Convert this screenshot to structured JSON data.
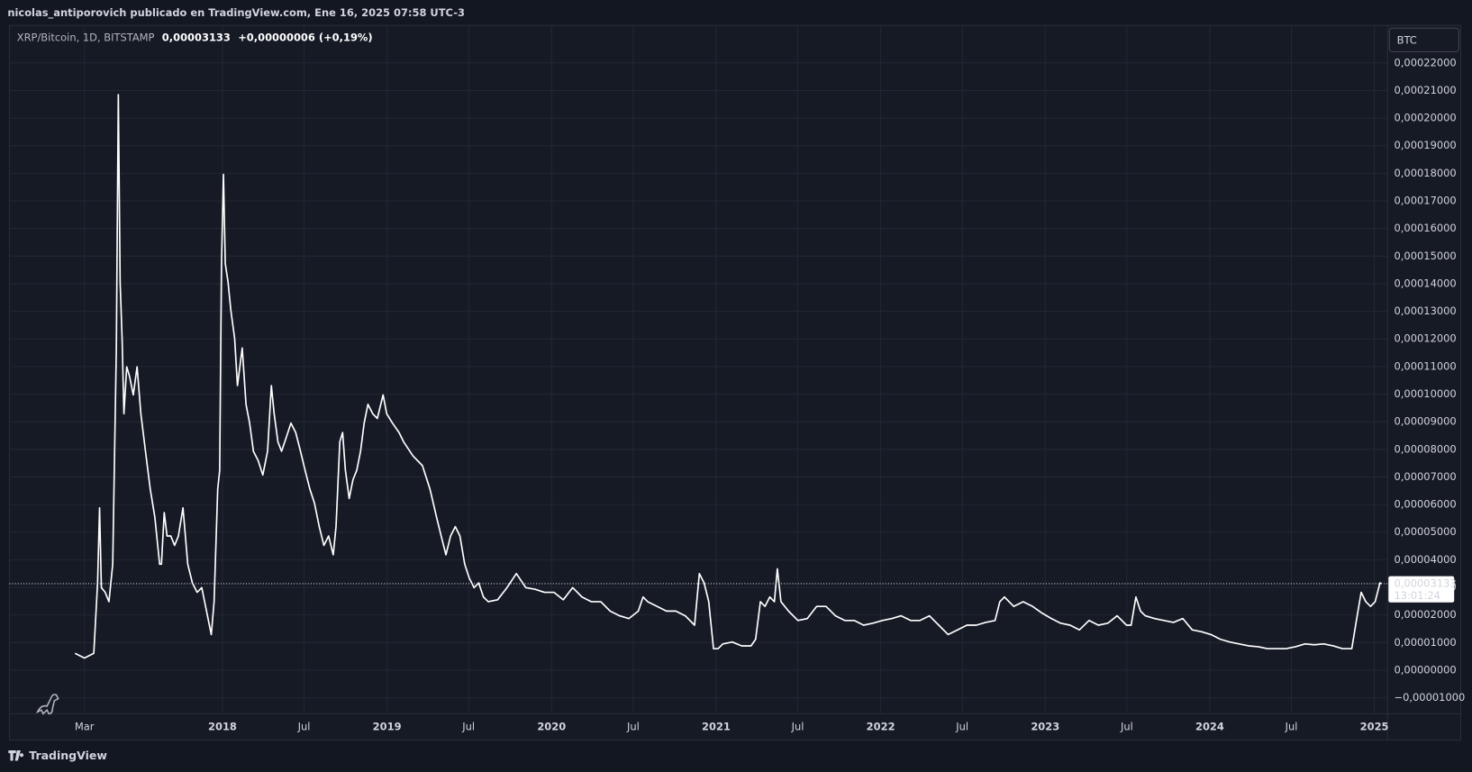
{
  "header": {
    "attribution": "nicolas_antiporovich publicado en TradingView.com, Ene 16, 2025 07:58 UTC-3",
    "brand": "TradingView"
  },
  "chart_data": {
    "type": "line",
    "title": "XRP/Bitcoin, 1D, BITSTAMP",
    "last_price_label": "0,00003133",
    "change_label": "+0,00000006 (+0,19%)",
    "currency": "BTC",
    "countdown": "13:01:24",
    "color": "#ffffff",
    "x": [
      2017.104,
      2017.161,
      2017.218,
      2017.241,
      2017.253,
      2017.264,
      2017.287,
      2017.31,
      2017.333,
      2017.355,
      2017.367,
      2017.378,
      2017.39,
      2017.401,
      2017.418,
      2017.435,
      2017.458,
      2017.481,
      2017.504,
      2017.532,
      2017.561,
      2017.589,
      2017.618,
      2017.629,
      2017.646,
      2017.663,
      2017.686,
      2017.709,
      2017.732,
      2017.76,
      2017.789,
      2017.817,
      2017.846,
      2017.874,
      2017.903,
      2017.932,
      2017.949,
      2017.971,
      2017.983,
      2017.994,
      2018.006,
      2018.017,
      2018.034,
      2018.051,
      2018.074,
      2018.091,
      2018.12,
      2018.143,
      2018.165,
      2018.188,
      2018.217,
      2018.245,
      2018.274,
      2018.297,
      2018.314,
      2018.337,
      2018.359,
      2018.388,
      2018.416,
      2018.445,
      2018.474,
      2018.502,
      2018.531,
      2018.559,
      2018.588,
      2018.616,
      2018.645,
      2018.673,
      2018.69,
      2018.713,
      2018.73,
      2018.747,
      2018.77,
      2018.793,
      2018.816,
      2018.839,
      2018.861,
      2018.884,
      2018.913,
      2018.941,
      2018.976,
      2018.998,
      2019.033,
      2019.073,
      2019.101,
      2019.158,
      2019.215,
      2019.261,
      2019.301,
      2019.329,
      2019.358,
      2019.386,
      2019.415,
      2019.443,
      2019.472,
      2019.5,
      2019.529,
      2019.557,
      2019.586,
      2019.615,
      2019.672,
      2019.729,
      2019.786,
      2019.843,
      2019.9,
      2019.957,
      2020.014,
      2020.071,
      2020.128,
      2020.185,
      2020.242,
      2020.299,
      2020.356,
      2020.413,
      2020.47,
      2020.527,
      2020.556,
      2020.584,
      2020.641,
      2020.698,
      2020.755,
      2020.812,
      2020.869,
      2020.898,
      2020.927,
      2020.955,
      2020.984,
      2021.012,
      2021.041,
      2021.098,
      2021.155,
      2021.212,
      2021.24,
      2021.269,
      2021.297,
      2021.326,
      2021.354,
      2021.372,
      2021.394,
      2021.44,
      2021.497,
      2021.554,
      2021.611,
      2021.668,
      2021.725,
      2021.782,
      2021.839,
      2021.896,
      2021.953,
      2022.01,
      2022.067,
      2022.124,
      2022.182,
      2022.239,
      2022.296,
      2022.353,
      2022.41,
      2022.467,
      2022.524,
      2022.581,
      2022.638,
      2022.695,
      2022.724,
      2022.752,
      2022.809,
      2022.866,
      2022.923,
      2022.98,
      2023.037,
      2023.094,
      2023.151,
      2023.208,
      2023.266,
      2023.323,
      2023.38,
      2023.437,
      2023.494,
      2023.522,
      2023.551,
      2023.579,
      2023.608,
      2023.665,
      2023.722,
      2023.779,
      2023.836,
      2023.893,
      2023.95,
      2024.007,
      2024.064,
      2024.121,
      2024.178,
      2024.236,
      2024.293,
      2024.35,
      2024.407,
      2024.464,
      2024.521,
      2024.578,
      2024.635,
      2024.692,
      2024.749,
      2024.806,
      2024.863,
      2024.891,
      2024.92,
      2024.948,
      2024.977,
      2025.005,
      2025.034,
      2025.045
    ],
    "values": [
      6.1e-06,
      4.4e-06,
      6.1e-06,
      3.16e-05,
      5.88e-05,
      2.99e-05,
      2.82e-05,
      2.48e-05,
      3.84e-05,
      0.0001167,
      0.0002085,
      0.0001405,
      0.0001201,
      9.29e-05,
      0.0001099,
      0.0001065,
      9.97e-05,
      0.0001099,
      9.29e-05,
      7.93e-05,
      6.56e-05,
      5.54e-05,
      3.84e-05,
      3.84e-05,
      5.71e-05,
      4.86e-05,
      4.86e-05,
      4.52e-05,
      4.86e-05,
      5.88e-05,
      3.84e-05,
      3.16e-05,
      2.82e-05,
      2.99e-05,
      2.14e-05,
      1.29e-05,
      2.48e-05,
      6.56e-05,
      7.24e-05,
      0.0001473,
      0.0001796,
      0.0001473,
      0.0001405,
      0.0001303,
      0.0001201,
      0.0001031,
      0.0001167,
      9.63e-05,
      8.95e-05,
      7.93e-05,
      7.59e-05,
      7.07e-05,
      7.93e-05,
      0.0001031,
      9.29e-05,
      8.27e-05,
      7.93e-05,
      8.44e-05,
      8.95e-05,
      8.61e-05,
      7.93e-05,
      7.24e-05,
      6.56e-05,
      6.05e-05,
      5.2e-05,
      4.52e-05,
      4.86e-05,
      4.18e-05,
      5.2e-05,
      8.27e-05,
      8.61e-05,
      7.24e-05,
      6.22e-05,
      6.9e-05,
      7.24e-05,
      7.93e-05,
      8.95e-05,
      9.63e-05,
      9.29e-05,
      9.12e-05,
      9.97e-05,
      9.29e-05,
      8.95e-05,
      8.61e-05,
      8.27e-05,
      7.76e-05,
      7.41e-05,
      6.56e-05,
      5.54e-05,
      4.86e-05,
      4.18e-05,
      4.86e-05,
      5.2e-05,
      4.86e-05,
      3.84e-05,
      3.33e-05,
      2.99e-05,
      3.16e-05,
      2.65e-05,
      2.48e-05,
      2.55e-05,
      2.99e-05,
      3.5e-05,
      2.99e-05,
      2.93e-05,
      2.82e-05,
      2.82e-05,
      2.55e-05,
      2.99e-05,
      2.65e-05,
      2.48e-05,
      2.48e-05,
      2.14e-05,
      1.97e-05,
      1.87e-05,
      2.14e-05,
      2.65e-05,
      2.48e-05,
      2.31e-05,
      2.14e-05,
      2.14e-05,
      1.97e-05,
      1.63e-05,
      3.5e-05,
      3.16e-05,
      2.48e-05,
      7.8e-06,
      7.8e-06,
      9.5e-06,
      1.02e-05,
      8.8e-06,
      8.8e-06,
      1.12e-05,
      2.48e-05,
      2.31e-05,
      2.65e-05,
      2.48e-05,
      3.67e-05,
      2.48e-05,
      2.14e-05,
      1.8e-05,
      1.87e-05,
      2.31e-05,
      2.31e-05,
      1.97e-05,
      1.8e-05,
      1.8e-05,
      1.63e-05,
      1.7e-05,
      1.8e-05,
      1.87e-05,
      1.97e-05,
      1.8e-05,
      1.8e-05,
      1.97e-05,
      1.63e-05,
      1.29e-05,
      1.46e-05,
      1.63e-05,
      1.63e-05,
      1.73e-05,
      1.8e-05,
      2.48e-05,
      2.65e-05,
      2.31e-05,
      2.48e-05,
      2.31e-05,
      2.07e-05,
      1.87e-05,
      1.7e-05,
      1.63e-05,
      1.46e-05,
      1.8e-05,
      1.63e-05,
      1.7e-05,
      1.97e-05,
      1.63e-05,
      1.63e-05,
      2.65e-05,
      2.14e-05,
      1.97e-05,
      1.87e-05,
      1.8e-05,
      1.73e-05,
      1.87e-05,
      1.46e-05,
      1.39e-05,
      1.29e-05,
      1.12e-05,
      1.02e-05,
      9.5e-06,
      8.8e-06,
      8.5e-06,
      7.8e-06,
      7.8e-06,
      7.8e-06,
      8.5e-06,
      9.5e-06,
      9.2e-06,
      9.5e-06,
      8.8e-06,
      7.8e-06,
      7.8e-06,
      1.8e-05,
      2.82e-05,
      2.48e-05,
      2.31e-05,
      2.48e-05,
      3.16e-05,
      3.133e-05
    ],
    "xlim": [
      2016.705,
      2025.08
    ],
    "xticks": [
      {
        "value": 2017.161,
        "label": "Mar"
      },
      2018,
      {
        "value": 2018.496,
        "label": "Jul"
      },
      2019,
      {
        "value": 2019.496,
        "label": "Jul"
      },
      2020,
      {
        "value": 2020.496,
        "label": "Jul"
      },
      2021,
      {
        "value": 2021.496,
        "label": "Jul"
      },
      2022,
      {
        "value": 2022.496,
        "label": "Jul"
      },
      2023,
      {
        "value": 2023.496,
        "label": "Jul"
      },
      2024,
      {
        "value": 2024.496,
        "label": "Jul"
      },
      2025
    ],
    "ylim": [
      -1.58e-05,
      0.0002336
    ],
    "yticks": [
      {
        "value": -1e-05,
        "label": "−0,00001000"
      },
      {
        "value": 0,
        "label": "0,00000000"
      },
      {
        "value": 1e-05,
        "label": "0,00001000"
      },
      {
        "value": 2e-05,
        "label": "0,00002000"
      },
      {
        "value": 3e-05,
        "label": "0,00003000"
      },
      {
        "value": 4e-05,
        "label": "0,00004000"
      },
      {
        "value": 5e-05,
        "label": "0,00005000"
      },
      {
        "value": 6e-05,
        "label": "0,00006000"
      },
      {
        "value": 7e-05,
        "label": "0,00007000"
      },
      {
        "value": 8e-05,
        "label": "0,00008000"
      },
      {
        "value": 9e-05,
        "label": "0,00009000"
      },
      {
        "value": 0.0001,
        "label": "0,00010000"
      },
      {
        "value": 0.00011,
        "label": "0,00011000"
      },
      {
        "value": 0.00012,
        "label": "0,00012000"
      },
      {
        "value": 0.00013,
        "label": "0,00013000"
      },
      {
        "value": 0.00014,
        "label": "0,00014000"
      },
      {
        "value": 0.00015,
        "label": "0,00015000"
      },
      {
        "value": 0.00016,
        "label": "0,00016000"
      },
      {
        "value": 0.00017,
        "label": "0,00017000"
      },
      {
        "value": 0.00018,
        "label": "0,00018000"
      },
      {
        "value": 0.00019,
        "label": "0,00019000"
      },
      {
        "value": 0.0002,
        "label": "0,00020000"
      },
      {
        "value": 0.00021,
        "label": "0,00021000"
      },
      {
        "value": 0.00022,
        "label": "0,00022000"
      }
    ],
    "grid": true
  }
}
